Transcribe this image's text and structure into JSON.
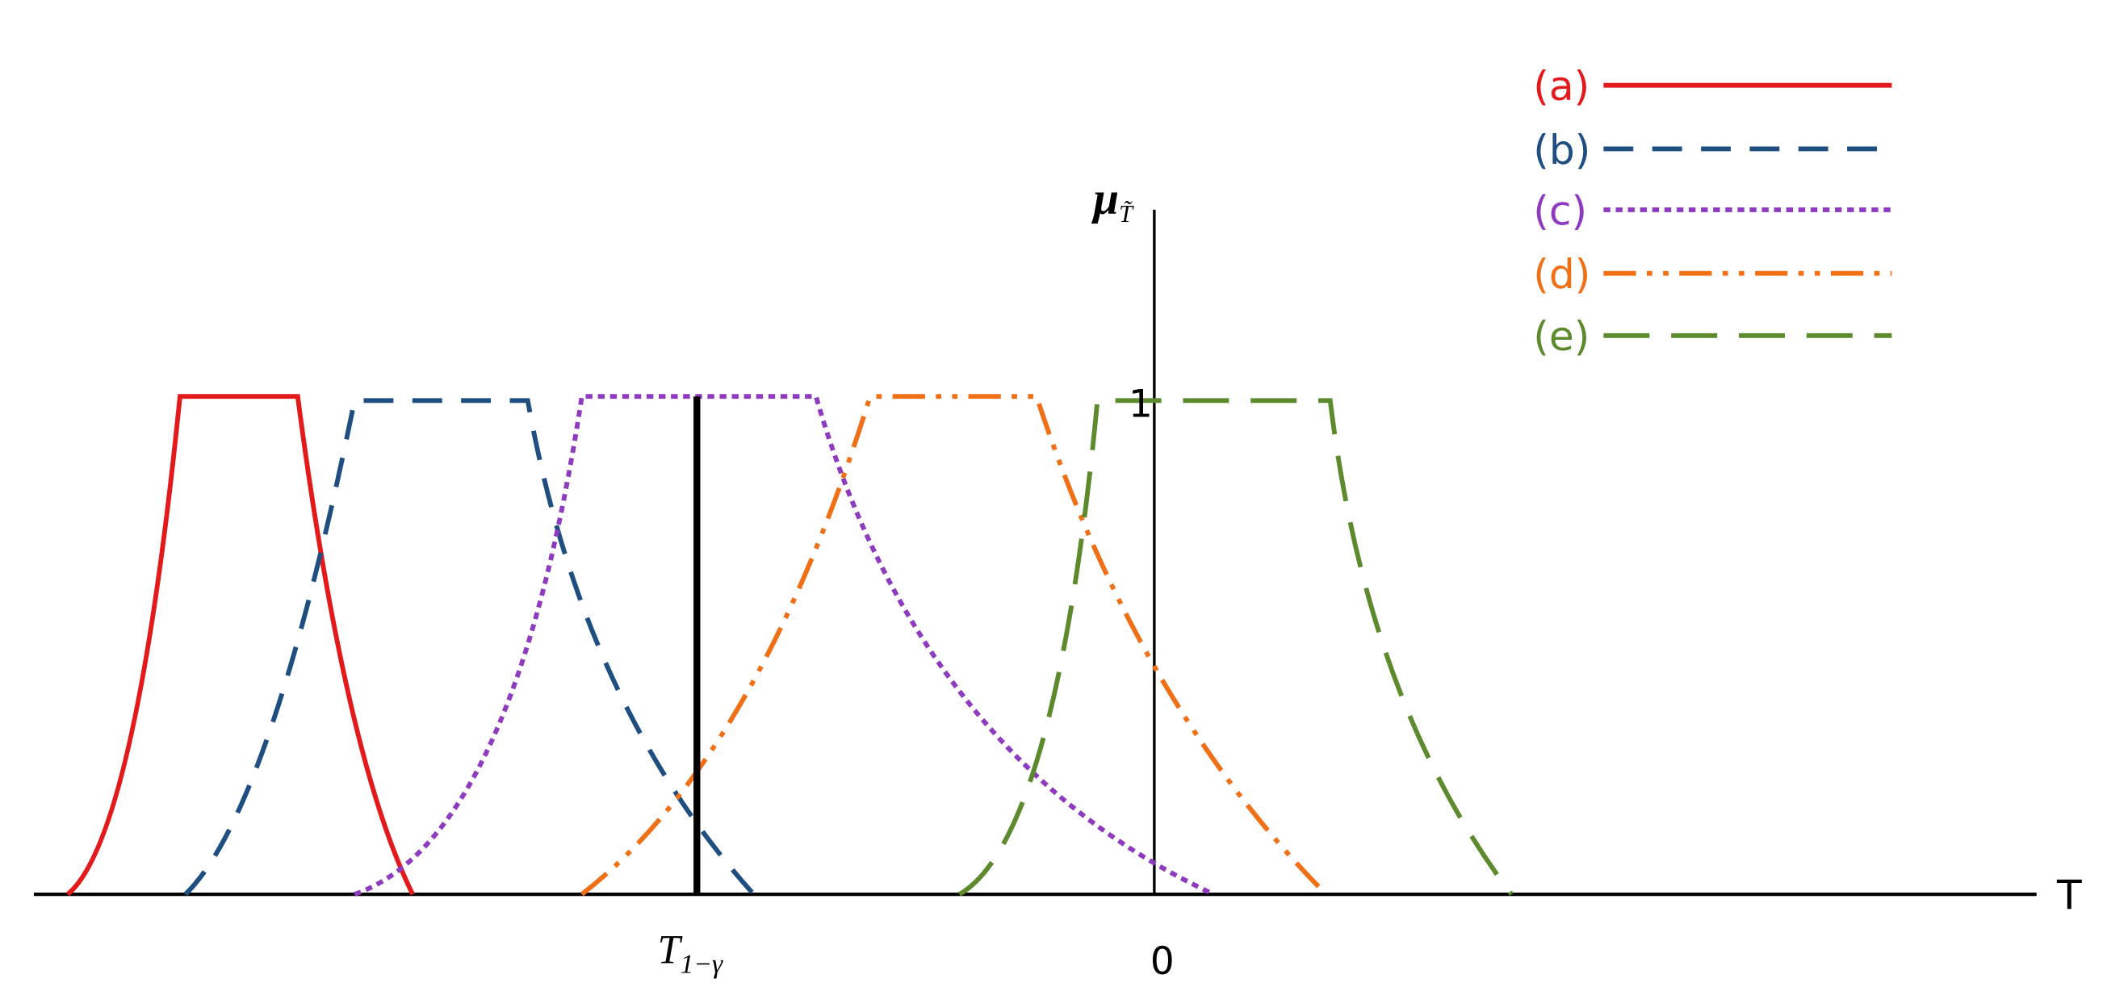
{
  "legend": [
    "(a)",
    "(b)",
    "(c)",
    "(d)",
    "(e)"
  ],
  "x_axis_label": "T",
  "y_axis_label": {
    "symbol": "μ",
    "subscript": "T̃"
  },
  "y_tick": "1",
  "x_tick": "0",
  "threshold_label": {
    "symbol": "T",
    "subscript": "1−γ"
  }
}
